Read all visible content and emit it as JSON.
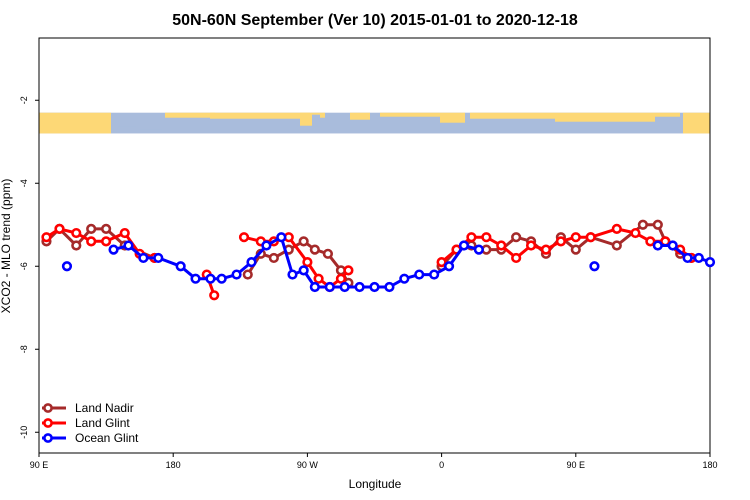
{
  "chart_data": {
    "type": "line",
    "title": "50N-60N September (Ver 10)   2015-01-01 to 2020-12-18",
    "xlabel": "Longitude",
    "ylabel": "XCO2 - MLO trend (ppm)",
    "xlim": [
      90,
      450
    ],
    "ylim": [
      -10.5,
      -0.5
    ],
    "x_ticks": [
      {
        "value": 90,
        "label": "90 E"
      },
      {
        "value": 162,
        "label": "180"
      },
      {
        "value": 234,
        "label": "90 W"
      },
      {
        "value": 306,
        "label": "0"
      },
      {
        "value": 378,
        "label": "90 E"
      },
      {
        "value": 450,
        "label": "180"
      }
    ],
    "y_ticks": [
      {
        "value": -2,
        "label": "-2"
      },
      {
        "value": -4,
        "label": "-4"
      },
      {
        "value": -6,
        "label": "-6"
      },
      {
        "value": -8,
        "label": "-8"
      },
      {
        "value": -10,
        "label": "-10"
      }
    ],
    "grid": false,
    "legend_position": "bottom-left",
    "map_strip": {
      "y_top": -2.3,
      "y_bottom": -2.8,
      "ocean_color": "#a9bcdc",
      "land_color": "#fdd876"
    },
    "series": [
      {
        "name": "Land Nadir",
        "color": "#a52a2a",
        "segments": [
          [
            [
              94,
              -5.4
            ],
            [
              101,
              -5.1
            ],
            [
              110,
              -5.5
            ],
            [
              118,
              -5.1
            ],
            [
              126,
              -5.1
            ],
            [
              136,
              -5.5
            ],
            [
              152,
              -5.8
            ]
          ],
          [
            [
              202,
              -6.2
            ],
            [
              209,
              -5.7
            ],
            [
              216,
              -5.8
            ],
            [
              224,
              -5.6
            ],
            [
              232,
              -5.4
            ],
            [
              238,
              -5.6
            ],
            [
              245,
              -5.7
            ],
            [
              252,
              -6.1
            ],
            [
              256,
              -6.4
            ]
          ],
          [
            [
              306,
              -6.0
            ],
            [
              314,
              -5.6
            ],
            [
              322,
              -5.5
            ],
            [
              330,
              -5.6
            ],
            [
              338,
              -5.6
            ],
            [
              346,
              -5.3
            ],
            [
              354,
              -5.4
            ],
            [
              362,
              -5.7
            ],
            [
              370,
              -5.3
            ],
            [
              378,
              -5.6
            ],
            [
              386,
              -5.3
            ],
            [
              400,
              -5.5
            ],
            [
              414,
              -5.0
            ],
            [
              422,
              -5.0
            ],
            [
              426,
              -5.4
            ],
            [
              434,
              -5.7
            ],
            [
              440,
              -5.8
            ]
          ]
        ]
      },
      {
        "name": "Land Glint",
        "color": "#ff0000",
        "segments": [
          [
            [
              94,
              -5.3
            ],
            [
              101,
              -5.1
            ],
            [
              110,
              -5.2
            ],
            [
              118,
              -5.4
            ],
            [
              126,
              -5.4
            ],
            [
              136,
              -5.2
            ],
            [
              144,
              -5.7
            ],
            [
              152,
              -5.8
            ]
          ],
          [
            [
              180,
              -6.2
            ],
            [
              184,
              -6.7
            ]
          ],
          [
            [
              200,
              -5.3
            ],
            [
              209,
              -5.4
            ],
            [
              216,
              -5.4
            ],
            [
              224,
              -5.3
            ],
            [
              234,
              -5.9
            ],
            [
              240,
              -6.3
            ],
            [
              246,
              -6.5
            ],
            [
              252,
              -6.3
            ],
            [
              256,
              -6.1
            ]
          ],
          [
            [
              306,
              -5.9
            ],
            [
              314,
              -5.6
            ],
            [
              322,
              -5.3
            ],
            [
              330,
              -5.3
            ],
            [
              338,
              -5.5
            ],
            [
              346,
              -5.8
            ],
            [
              354,
              -5.5
            ],
            [
              362,
              -5.6
            ],
            [
              370,
              -5.4
            ],
            [
              378,
              -5.3
            ],
            [
              386,
              -5.3
            ],
            [
              400,
              -5.1
            ],
            [
              410,
              -5.2
            ],
            [
              418,
              -5.4
            ],
            [
              426,
              -5.4
            ],
            [
              434,
              -5.6
            ],
            [
              440,
              -5.8
            ]
          ]
        ]
      },
      {
        "name": "Ocean Glint",
        "color": "#0000ff",
        "segments": [
          [
            [
              105,
              -6.0
            ]
          ],
          [
            [
              130,
              -5.6
            ],
            [
              138,
              -5.5
            ],
            [
              146,
              -5.8
            ],
            [
              154,
              -5.8
            ],
            [
              166,
              -6.0
            ],
            [
              174,
              -6.3
            ],
            [
              182,
              -6.3
            ],
            [
              188,
              -6.3
            ],
            [
              196,
              -6.2
            ],
            [
              204,
              -5.9
            ],
            [
              212,
              -5.5
            ],
            [
              220,
              -5.3
            ],
            [
              226,
              -6.2
            ],
            [
              232,
              -6.1
            ],
            [
              238,
              -6.5
            ],
            [
              246,
              -6.5
            ],
            [
              254,
              -6.5
            ],
            [
              262,
              -6.5
            ],
            [
              270,
              -6.5
            ],
            [
              278,
              -6.5
            ],
            [
              286,
              -6.3
            ],
            [
              294,
              -6.2
            ],
            [
              302,
              -6.2
            ],
            [
              310,
              -6.0
            ],
            [
              318,
              -5.5
            ],
            [
              326,
              -5.6
            ]
          ],
          [
            [
              388,
              -6.0
            ]
          ],
          [
            [
              422,
              -5.5
            ],
            [
              430,
              -5.5
            ],
            [
              438,
              -5.8
            ],
            [
              444,
              -5.8
            ],
            [
              450,
              -5.9
            ]
          ]
        ]
      }
    ]
  }
}
